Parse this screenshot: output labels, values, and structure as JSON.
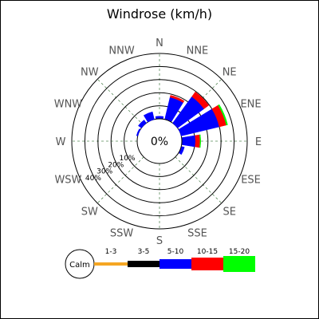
{
  "chart_data": {
    "type": "windrose",
    "title": "Windrose (km/h)",
    "directions": [
      "N",
      "NNE",
      "NE",
      "ENE",
      "E",
      "ESE",
      "SE",
      "SSE",
      "S",
      "SSW",
      "SW",
      "WSW",
      "W",
      "WNW",
      "NW",
      "NNW"
    ],
    "bins": [
      "1-3",
      "3-5",
      "5-10",
      "10-15",
      "15-20"
    ],
    "bin_colors": [
      "#f5a623",
      "#000000",
      "#0000ff",
      "#ff0000",
      "#00ff00"
    ],
    "ring_labels": [
      "10%",
      "20%",
      "30%",
      "40%"
    ],
    "rlim": [
      0,
      50
    ],
    "center_label": "0%",
    "calm_label": "Calm",
    "series": [
      {
        "direction": "N",
        "values": [
          0,
          0.5,
          1.5,
          0,
          0
        ]
      },
      {
        "direction": "NNE",
        "values": [
          0,
          0.5,
          17,
          1.5,
          0
        ]
      },
      {
        "direction": "NE",
        "values": [
          0,
          0,
          25,
          4.5,
          0
        ]
      },
      {
        "direction": "ENE",
        "values": [
          0,
          0,
          30,
          5.5,
          1
        ]
      },
      {
        "direction": "E",
        "values": [
          0,
          0.5,
          10,
          3.5,
          0.5
        ]
      },
      {
        "direction": "ESE",
        "values": [
          0,
          0.5,
          2,
          0,
          0
        ]
      },
      {
        "direction": "SE",
        "values": [
          0,
          0,
          0,
          0,
          0
        ]
      },
      {
        "direction": "SSE",
        "values": [
          0,
          0,
          0,
          0,
          0
        ]
      },
      {
        "direction": "S",
        "values": [
          0,
          0,
          0,
          0,
          0
        ]
      },
      {
        "direction": "SSW",
        "values": [
          0,
          0,
          0,
          0,
          0
        ]
      },
      {
        "direction": "SW",
        "values": [
          0,
          0,
          0,
          0,
          0
        ]
      },
      {
        "direction": "WSW",
        "values": [
          0,
          0,
          0,
          0,
          0
        ]
      },
      {
        "direction": "W",
        "values": [
          0,
          0,
          0,
          0,
          0
        ]
      },
      {
        "direction": "WNW",
        "values": [
          0,
          0,
          1,
          0,
          0
        ]
      },
      {
        "direction": "NW",
        "values": [
          0,
          0,
          3,
          0,
          0
        ]
      },
      {
        "direction": "NNW",
        "values": [
          0,
          0,
          6,
          0,
          0
        ]
      }
    ],
    "legend_position": "bottom",
    "grid": true
  }
}
